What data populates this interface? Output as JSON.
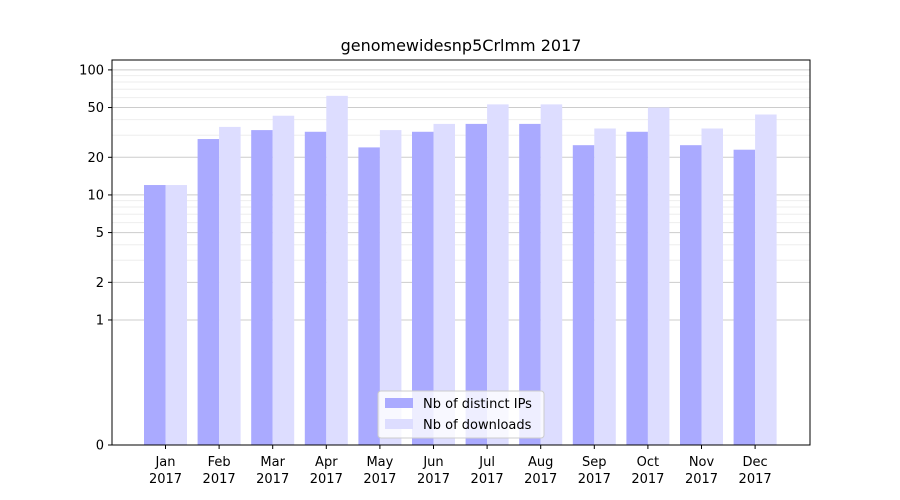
{
  "chart_data": {
    "type": "bar",
    "title": "genomewidesnp5Crlmm 2017",
    "xlabel": "",
    "ylabel": "",
    "y_scale": "symlog",
    "y_ticks": [
      0,
      1,
      2,
      5,
      10,
      20,
      50,
      100
    ],
    "ylim": [
      0,
      120
    ],
    "grid": true,
    "legend_position": "bottom-center",
    "categories": [
      [
        "Jan",
        "2017"
      ],
      [
        "Feb",
        "2017"
      ],
      [
        "Mar",
        "2017"
      ],
      [
        "Apr",
        "2017"
      ],
      [
        "May",
        "2017"
      ],
      [
        "Jun",
        "2017"
      ],
      [
        "Jul",
        "2017"
      ],
      [
        "Aug",
        "2017"
      ],
      [
        "Sep",
        "2017"
      ],
      [
        "Oct",
        "2017"
      ],
      [
        "Nov",
        "2017"
      ],
      [
        "Dec",
        "2017"
      ]
    ],
    "series": [
      {
        "name": "Nb of distinct IPs",
        "color": "#aaaaff",
        "values": [
          12,
          28,
          33,
          32,
          24,
          32,
          37,
          37,
          25,
          32,
          25,
          23
        ]
      },
      {
        "name": "Nb of downloads",
        "color": "#ddddff",
        "values": [
          12,
          35,
          43,
          62,
          33,
          37,
          53,
          53,
          34,
          50,
          34,
          44
        ]
      }
    ]
  }
}
